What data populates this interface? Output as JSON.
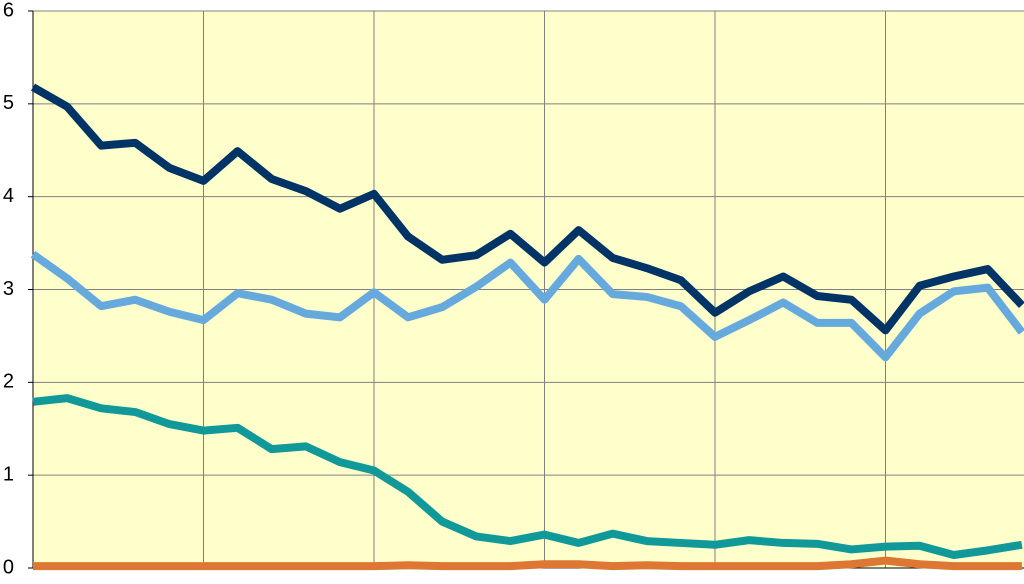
{
  "chart_data": {
    "type": "line",
    "categories": [
      null,
      null,
      null,
      null,
      null,
      null,
      null,
      null,
      null,
      null,
      null,
      null,
      null,
      null,
      null,
      null,
      null,
      null,
      null,
      null,
      null,
      null,
      null,
      null,
      null,
      null,
      null,
      null,
      null,
      null
    ],
    "series": [
      {
        "color": "#003366",
        "values": [
          5.18,
          4.97,
          4.55,
          4.58,
          4.31,
          4.17,
          4.49,
          4.19,
          4.06,
          3.87,
          4.03,
          3.57,
          3.32,
          3.37,
          3.6,
          3.29,
          3.64,
          3.34,
          3.23,
          3.1,
          2.75,
          2.98,
          3.14,
          2.93,
          2.89,
          2.56,
          3.04,
          3.14,
          3.22,
          2.83
        ]
      },
      {
        "color": "#66aadd",
        "values": [
          3.38,
          3.12,
          2.82,
          2.89,
          2.76,
          2.67,
          2.96,
          2.89,
          2.74,
          2.7,
          2.97,
          2.7,
          2.81,
          3.03,
          3.29,
          2.89,
          3.33,
          2.95,
          2.92,
          2.82,
          2.49,
          2.67,
          2.86,
          2.64,
          2.64,
          2.27,
          2.74,
          2.98,
          3.02,
          2.54
        ]
      },
      {
        "color": "#119999",
        "values": [
          1.79,
          1.83,
          1.72,
          1.68,
          1.55,
          1.48,
          1.51,
          1.28,
          1.31,
          1.14,
          1.05,
          0.82,
          0.5,
          0.34,
          0.29,
          0.36,
          0.27,
          0.37,
          0.29,
          0.27,
          0.25,
          0.3,
          0.27,
          0.26,
          0.2,
          0.23,
          0.24,
          0.14,
          0.19,
          0.25
        ]
      },
      {
        "color": "#dd7733",
        "values": [
          0.02,
          0.02,
          0.02,
          0.02,
          0.02,
          0.02,
          0.02,
          0.02,
          0.02,
          0.02,
          0.02,
          0.03,
          0.02,
          0.02,
          0.02,
          0.04,
          0.04,
          0.02,
          0.03,
          0.02,
          0.02,
          0.02,
          0.02,
          0.02,
          0.04,
          0.08,
          0.04,
          0.02,
          0.02,
          0.02
        ]
      }
    ],
    "ylim": [
      0,
      6
    ],
    "yticks": [
      0,
      1,
      2,
      3,
      4,
      5,
      6
    ],
    "grid": true,
    "background": "#ffffcc"
  }
}
